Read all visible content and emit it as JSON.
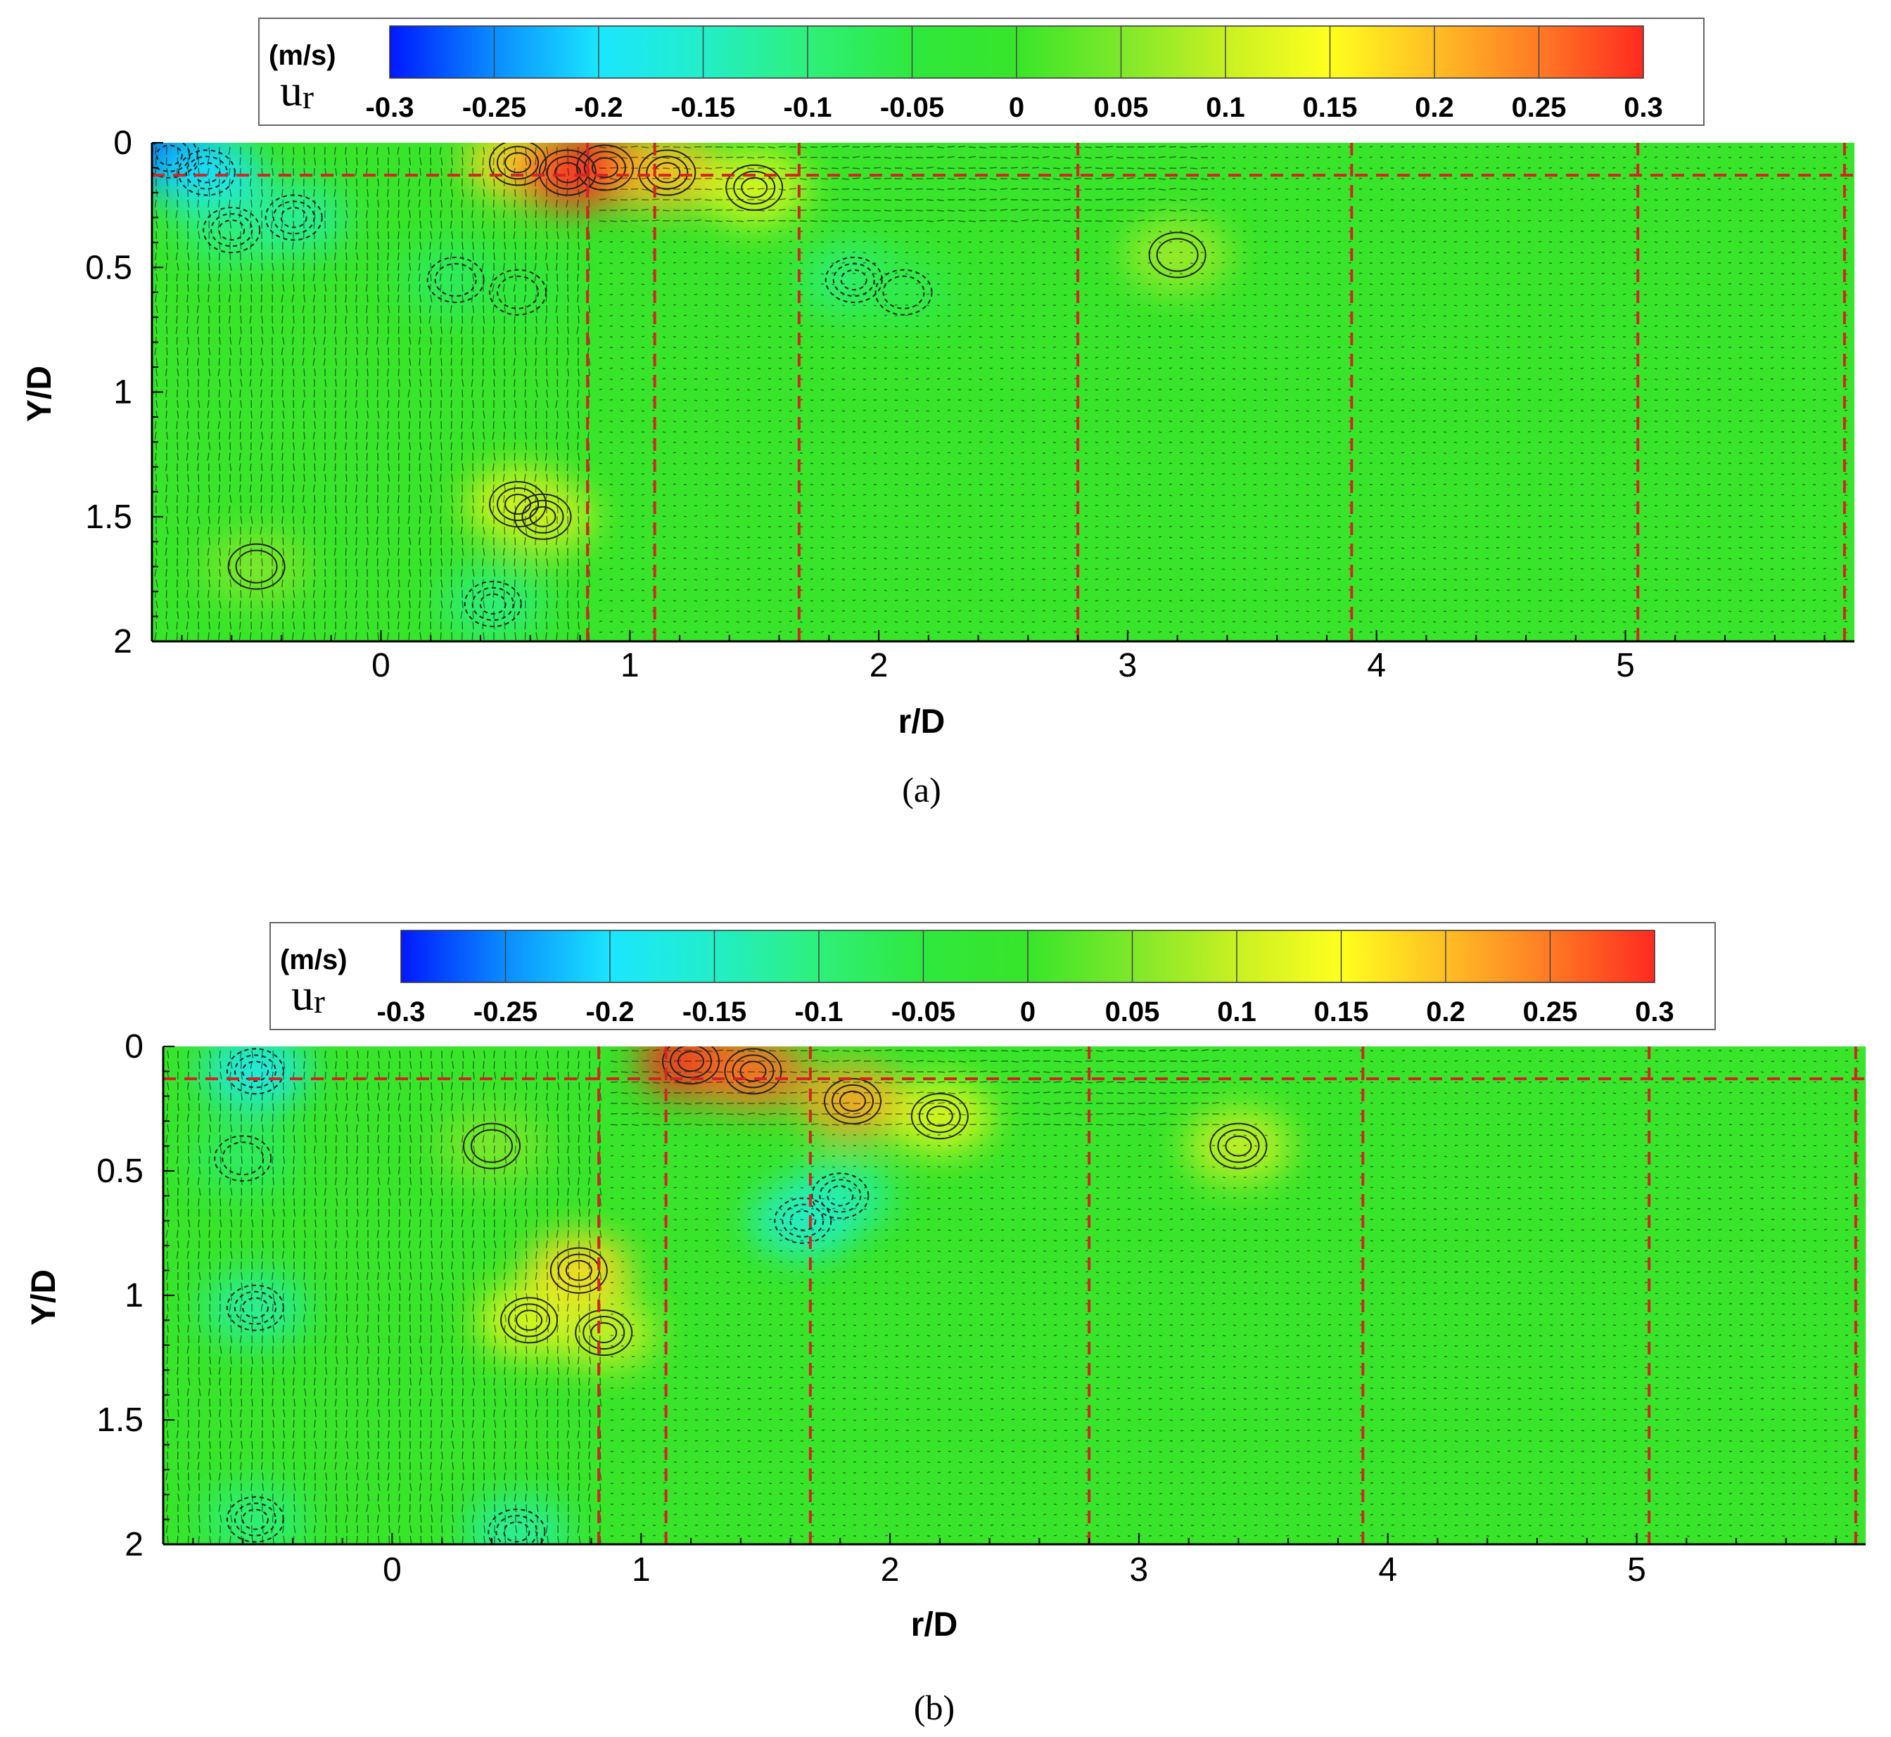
{
  "figure": {
    "panels": [
      {
        "caption": "(a)"
      },
      {
        "caption": "(b)"
      }
    ]
  },
  "chart_data": [
    {
      "panel": "(a)",
      "type": "heatmap",
      "field": "u_r",
      "xlabel": "r/D",
      "ylabel": "Y/D",
      "xlim": [
        -0.92,
        5.92
      ],
      "ylim": [
        2,
        0
      ],
      "y_axis_inverted": true,
      "xticks": [
        "0",
        "1",
        "2",
        "3",
        "4",
        "5"
      ],
      "yticks": [
        "0",
        "0.5",
        "1",
        "1.5",
        "2"
      ],
      "colorbar": {
        "unit": "(m/s)",
        "symbol": "u",
        "subscript": "r",
        "ticks": [
          "-0.3",
          "-0.25",
          "-0.2",
          "-0.15",
          "-0.1",
          "-0.05",
          "0",
          "0.05",
          "0.1",
          "0.15",
          "0.2",
          "0.25",
          "0.3"
        ],
        "range": [
          -0.3,
          0.3
        ],
        "colors": [
          "#0018ff",
          "#0a8cff",
          "#1ae6ff",
          "#22eec8",
          "#2ef07a",
          "#2fe83e",
          "#38e52a",
          "#7ee82a",
          "#c8f022",
          "#ffff1e",
          "#ffbe24",
          "#ff7a24",
          "#ff2a20"
        ]
      },
      "reference_lines": {
        "color": "#d42424",
        "horizontal_y": [
          0.13
        ],
        "vertical_x": [
          0.83,
          1.1,
          1.68,
          2.8,
          3.9,
          5.05,
          5.88
        ]
      },
      "regions": [
        {
          "x": -0.85,
          "y": 0.05,
          "value": -0.3
        },
        {
          "x": -0.7,
          "y": 0.12,
          "value": -0.2
        },
        {
          "x": -0.6,
          "y": 0.35,
          "value": -0.1
        },
        {
          "x": -0.35,
          "y": 0.3,
          "value": -0.12
        },
        {
          "x": 0.55,
          "y": 0.08,
          "value": 0.18
        },
        {
          "x": 0.75,
          "y": 0.12,
          "value": 0.28
        },
        {
          "x": 0.9,
          "y": 0.1,
          "value": 0.3
        },
        {
          "x": 1.15,
          "y": 0.12,
          "value": 0.2
        },
        {
          "x": 1.5,
          "y": 0.18,
          "value": 0.12
        },
        {
          "x": 0.3,
          "y": 0.55,
          "value": -0.08
        },
        {
          "x": 0.55,
          "y": 0.6,
          "value": -0.05
        },
        {
          "x": 0.55,
          "y": 1.45,
          "value": 0.12
        },
        {
          "x": 0.65,
          "y": 1.5,
          "value": 0.1
        },
        {
          "x": 0.45,
          "y": 1.85,
          "value": -0.1
        },
        {
          "x": 1.9,
          "y": 0.55,
          "value": -0.1
        },
        {
          "x": 2.1,
          "y": 0.6,
          "value": -0.06
        },
        {
          "x": 3.2,
          "y": 0.45,
          "value": 0.07
        },
        {
          "x": -0.5,
          "y": 1.7,
          "value": 0.05
        }
      ]
    },
    {
      "panel": "(b)",
      "type": "heatmap",
      "field": "u_r",
      "xlabel": "r/D",
      "ylabel": "Y/D",
      "xlim": [
        -0.92,
        5.92
      ],
      "ylim": [
        2,
        0
      ],
      "y_axis_inverted": true,
      "xticks": [
        "0",
        "1",
        "2",
        "3",
        "4",
        "5"
      ],
      "yticks": [
        "0",
        "0.5",
        "1",
        "1.5",
        "2"
      ],
      "colorbar": {
        "unit": "(m/s)",
        "symbol": "u",
        "subscript": "r",
        "ticks": [
          "-0.3",
          "-0.25",
          "-0.2",
          "-0.15",
          "-0.1",
          "-0.05",
          "0",
          "0.05",
          "0.1",
          "0.15",
          "0.2",
          "0.25",
          "0.3"
        ],
        "range": [
          -0.3,
          0.3
        ],
        "colors": [
          "#0018ff",
          "#0a8cff",
          "#1ae6ff",
          "#22eec8",
          "#2ef07a",
          "#2fe83e",
          "#38e52a",
          "#7ee82a",
          "#c8f022",
          "#ffff1e",
          "#ffbe24",
          "#ff7a24",
          "#ff2a20"
        ]
      },
      "reference_lines": {
        "color": "#d42424",
        "horizontal_y": [
          0.13
        ],
        "vertical_x": [
          0.83,
          1.1,
          1.68,
          2.8,
          3.9,
          5.05,
          5.88
        ]
      },
      "regions": [
        {
          "x": -0.55,
          "y": 0.1,
          "value": -0.18
        },
        {
          "x": -0.6,
          "y": 0.45,
          "value": -0.08
        },
        {
          "x": -0.55,
          "y": 1.05,
          "value": -0.12
        },
        {
          "x": -0.55,
          "y": 1.9,
          "value": -0.1
        },
        {
          "x": 0.75,
          "y": 0.9,
          "value": 0.18
        },
        {
          "x": 0.55,
          "y": 1.1,
          "value": 0.12
        },
        {
          "x": 0.85,
          "y": 1.15,
          "value": 0.1
        },
        {
          "x": 0.5,
          "y": 1.95,
          "value": -0.12
        },
        {
          "x": 1.2,
          "y": 0.06,
          "value": 0.3
        },
        {
          "x": 1.45,
          "y": 0.1,
          "value": 0.26
        },
        {
          "x": 1.85,
          "y": 0.22,
          "value": 0.22
        },
        {
          "x": 2.2,
          "y": 0.28,
          "value": 0.12
        },
        {
          "x": 1.8,
          "y": 0.6,
          "value": -0.12
        },
        {
          "x": 1.65,
          "y": 0.7,
          "value": -0.15
        },
        {
          "x": 3.4,
          "y": 0.4,
          "value": 0.1
        },
        {
          "x": 0.4,
          "y": 0.4,
          "value": 0.05
        }
      ]
    }
  ]
}
